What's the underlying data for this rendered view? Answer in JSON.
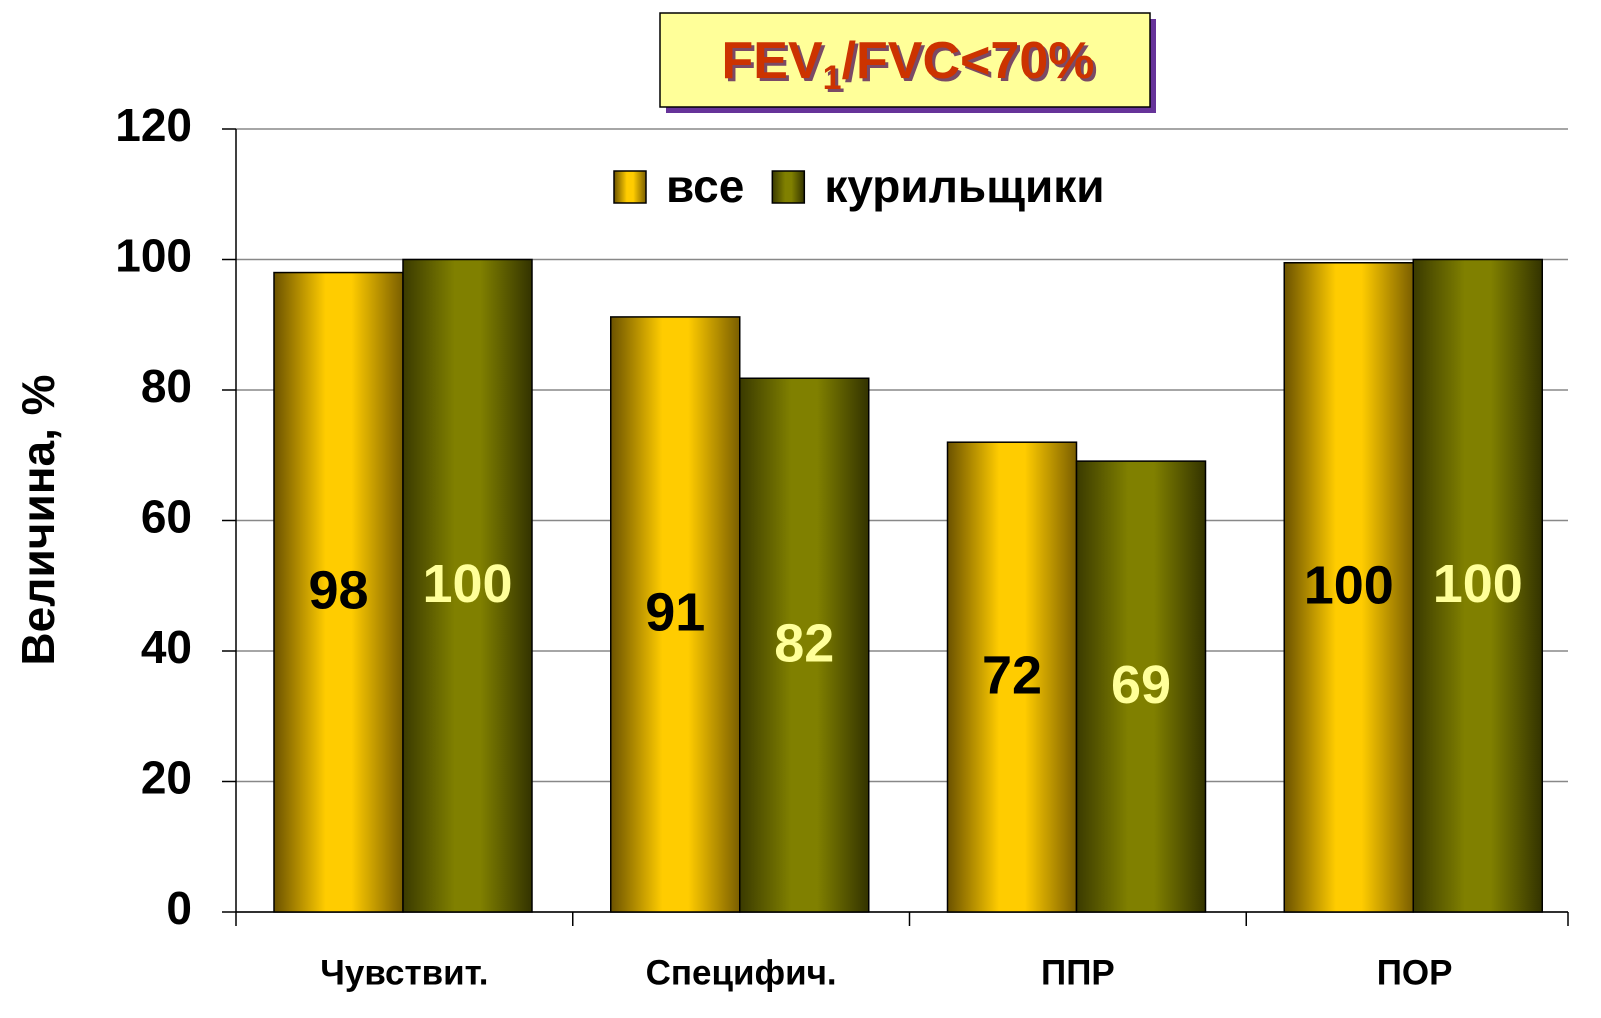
{
  "chart_data": {
    "type": "bar",
    "title": [
      "FEV",
      "1",
      "/FVC<70%"
    ],
    "y_label": "Величина, %",
    "categories": [
      "Чувствит.",
      "Специфич.",
      "ППР",
      "ПОР"
    ],
    "series": [
      {
        "name": "все",
        "color": "#ffcc00",
        "values": [
          98,
          91.2,
          72,
          99.5
        ],
        "value_labels": [
          "98",
          "91",
          "72",
          "100"
        ],
        "label_color": "#000000"
      },
      {
        "name": "курильщики",
        "color": "#808000",
        "values": [
          100,
          81.8,
          69.1,
          100
        ],
        "value_labels": [
          "100",
          "82",
          "69",
          "100"
        ],
        "label_color": "#ffff99"
      }
    ],
    "ylim": [
      0,
      120
    ],
    "yticks": [
      0,
      20,
      40,
      60,
      80,
      100,
      120
    ],
    "grid": true,
    "legend": "top"
  }
}
